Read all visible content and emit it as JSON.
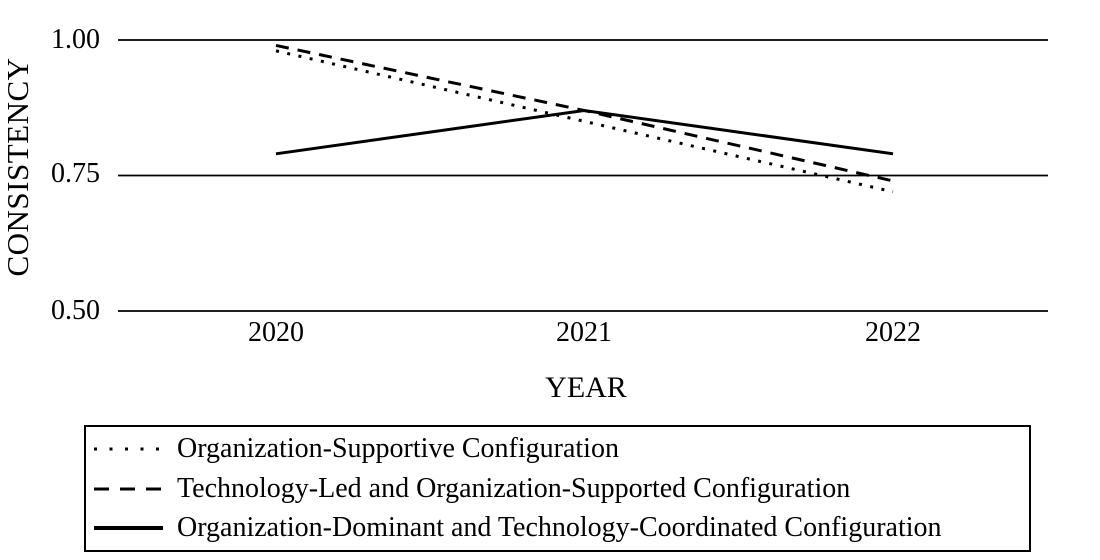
{
  "chart_data": {
    "type": "line",
    "title": "",
    "x": [
      "2020",
      "2021",
      "2022"
    ],
    "xlabel": "YEAR",
    "ylabel": "CONSISTENCY",
    "ylim": [
      0.5,
      1.0
    ],
    "y_ticks": [
      {
        "label": "1.00",
        "value": 1.0
      },
      {
        "label": "0.75",
        "value": 0.75
      },
      {
        "label": "0.50",
        "value": 0.5
      }
    ],
    "grid": true,
    "legend_position": "bottom-boxed",
    "series": [
      {
        "name": "Organization-Supportive Configuration",
        "style": "dotted",
        "values": [
          0.98,
          0.85,
          0.72
        ]
      },
      {
        "name": "Technology-Led and Organization-Supported Configuration",
        "style": "dashed",
        "values": [
          0.99,
          0.87,
          0.74
        ]
      },
      {
        "name": "Organization-Dominant and Technology-Coordinated Configuration",
        "style": "solid",
        "values": [
          0.79,
          0.87,
          0.79
        ]
      }
    ],
    "colors": {
      "line": "#000000",
      "background": "#ffffff"
    }
  }
}
